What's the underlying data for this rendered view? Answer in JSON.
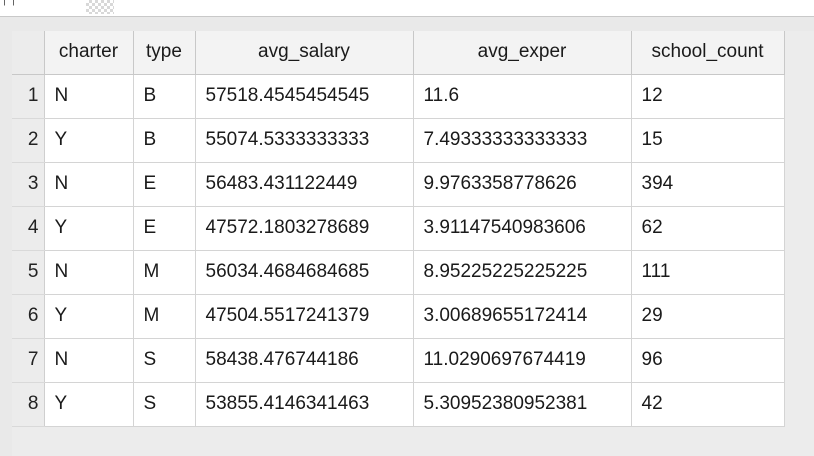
{
  "table": {
    "columns": [
      "charter",
      "type",
      "avg_salary",
      "avg_exper",
      "school_count"
    ],
    "rows": [
      {
        "num": "1",
        "charter": "N",
        "type": "B",
        "avg_salary": "57518.4545454545",
        "avg_exper": "11.6",
        "school_count": "12"
      },
      {
        "num": "2",
        "charter": "Y",
        "type": "B",
        "avg_salary": "55074.5333333333",
        "avg_exper": "7.49333333333333",
        "school_count": "15"
      },
      {
        "num": "3",
        "charter": "N",
        "type": "E",
        "avg_salary": "56483.431122449",
        "avg_exper": "9.9763358778626",
        "school_count": "394"
      },
      {
        "num": "4",
        "charter": "Y",
        "type": "E",
        "avg_salary": "47572.1803278689",
        "avg_exper": "3.91147540983606",
        "school_count": "62"
      },
      {
        "num": "5",
        "charter": "N",
        "type": "M",
        "avg_salary": "56034.4684684685",
        "avg_exper": "8.95225225225225",
        "school_count": "111"
      },
      {
        "num": "6",
        "charter": "Y",
        "type": "M",
        "avg_salary": "47504.5517241379",
        "avg_exper": "3.00689655172414",
        "school_count": "29"
      },
      {
        "num": "7",
        "charter": "N",
        "type": "S",
        "avg_salary": "58438.476744186",
        "avg_exper": "11.0290697674419",
        "school_count": "96"
      },
      {
        "num": "8",
        "charter": "Y",
        "type": "S",
        "avg_salary": "53855.4146341463",
        "avg_exper": "5.30952380952381",
        "school_count": "42"
      }
    ]
  }
}
